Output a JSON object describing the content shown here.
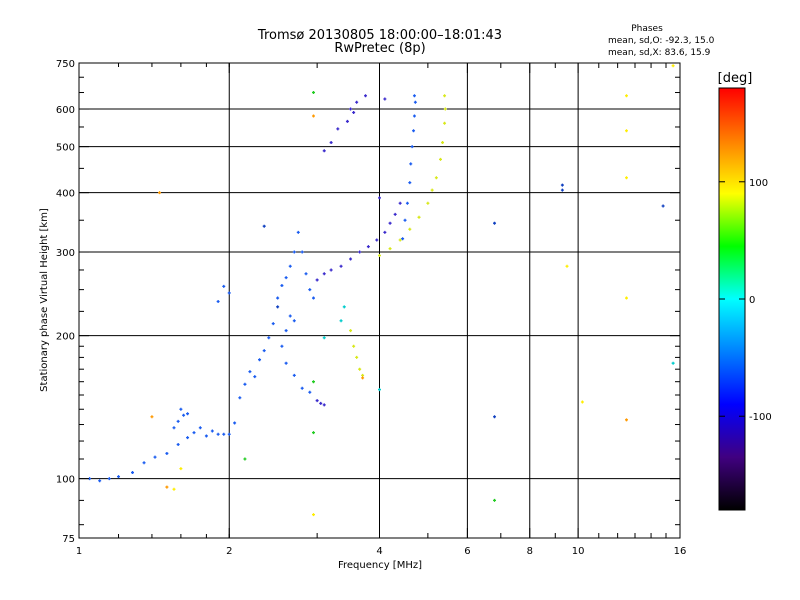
{
  "chart_data": {
    "type": "scatter",
    "title": "Tromsø 20130805 18:00:00–18:01:43",
    "subtitle": "RwPretec (8p)",
    "stats": {
      "heading": "Phases",
      "line_o": "mean, sd,O: -92.3, 15.0",
      "line_x": "mean, sd,X:  83.6, 15.9"
    },
    "xlabel": "Frequency [MHz]",
    "ylabel": "Stationary phase Virtual Height [km]",
    "x_scale": "log",
    "y_scale": "log",
    "xlim": [
      1,
      16
    ],
    "ylim": [
      75,
      750
    ],
    "x_ticks": [
      1,
      2,
      4,
      6,
      8,
      10,
      16
    ],
    "x_tick_labels": [
      "1",
      "2",
      "4",
      "6",
      "8",
      "10",
      "16"
    ],
    "y_ticks": [
      75,
      100,
      200,
      300,
      400,
      500,
      600,
      750
    ],
    "y_tick_labels": [
      "75",
      "100",
      "200",
      "300",
      "400",
      "500",
      "600",
      "750"
    ],
    "grid": true,
    "colorbar": {
      "label": "[deg]",
      "range": [
        -180,
        180
      ],
      "ticks": [
        100,
        0,
        -100
      ],
      "tick_labels": [
        "100",
        "0",
        "-100"
      ],
      "colors": [
        "#ff0000",
        "#ff8000",
        "#ffff00",
        "#00ff00",
        "#00ffff",
        "#0080ff",
        "#0000ff",
        "#400080",
        "#000000"
      ]
    },
    "series": [
      {
        "color": "#1a5cf0",
        "description_phase": -110,
        "points": [
          [
            1.05,
            100
          ],
          [
            1.1,
            99
          ],
          [
            1.15,
            100
          ],
          [
            1.2,
            101
          ],
          [
            1.28,
            103
          ],
          [
            1.35,
            108
          ],
          [
            1.42,
            111
          ],
          [
            1.5,
            113
          ],
          [
            1.58,
            118
          ],
          [
            1.65,
            122
          ],
          [
            1.7,
            125
          ],
          [
            1.75,
            128
          ],
          [
            1.8,
            123
          ],
          [
            1.85,
            126
          ],
          [
            1.9,
            124
          ],
          [
            1.95,
            124
          ],
          [
            2.0,
            124
          ],
          [
            2.05,
            131
          ],
          [
            2.1,
            148
          ],
          [
            2.15,
            158
          ],
          [
            2.2,
            168
          ],
          [
            2.25,
            164
          ],
          [
            2.3,
            178
          ],
          [
            2.35,
            186
          ],
          [
            2.4,
            198
          ],
          [
            2.45,
            212
          ],
          [
            2.5,
            240
          ],
          [
            2.55,
            255
          ],
          [
            2.6,
            265
          ],
          [
            2.65,
            280
          ],
          [
            2.7,
            300
          ],
          [
            2.75,
            330
          ],
          [
            2.8,
            300
          ],
          [
            2.85,
            270
          ],
          [
            2.9,
            250
          ],
          [
            2.95,
            240
          ],
          [
            2.65,
            220
          ],
          [
            2.7,
            215
          ],
          [
            2.6,
            205
          ],
          [
            2.55,
            190
          ],
          [
            2.6,
            175
          ],
          [
            2.7,
            165
          ],
          [
            2.8,
            155
          ],
          [
            2.9,
            152
          ],
          [
            1.6,
            140
          ],
          [
            1.62,
            136
          ],
          [
            1.58,
            132
          ],
          [
            1.55,
            128
          ],
          [
            1.65,
            137
          ],
          [
            1.95,
            254
          ],
          [
            2.0,
            246
          ],
          [
            1.9,
            236
          ],
          [
            4.45,
            320
          ],
          [
            4.5,
            350
          ],
          [
            4.55,
            380
          ],
          [
            4.6,
            420
          ],
          [
            4.62,
            460
          ],
          [
            4.65,
            500
          ],
          [
            4.68,
            540
          ],
          [
            4.7,
            580
          ],
          [
            4.72,
            620
          ],
          [
            4.7,
            640
          ]
        ]
      },
      {
        "color": "#3a2acc",
        "description_phase": -130,
        "points": [
          [
            3.0,
            146
          ],
          [
            3.05,
            144
          ],
          [
            3.1,
            143
          ],
          [
            3.0,
            262
          ],
          [
            3.1,
            270
          ],
          [
            3.2,
            275
          ],
          [
            3.35,
            280
          ],
          [
            3.5,
            290
          ],
          [
            3.65,
            300
          ],
          [
            3.8,
            308
          ],
          [
            3.95,
            318
          ],
          [
            4.1,
            330
          ],
          [
            4.2,
            345
          ],
          [
            4.3,
            360
          ],
          [
            4.4,
            380
          ],
          [
            3.1,
            490
          ],
          [
            3.2,
            510
          ],
          [
            3.3,
            545
          ],
          [
            3.45,
            565
          ],
          [
            3.55,
            590
          ],
          [
            3.6,
            620
          ],
          [
            3.75,
            640
          ],
          [
            4.1,
            630
          ],
          [
            4.0,
            390
          ],
          [
            3.5,
            600
          ]
        ]
      },
      {
        "color": "#d8e81a",
        "description_phase": 90,
        "points": [
          [
            3.5,
            205
          ],
          [
            3.55,
            190
          ],
          [
            3.6,
            180
          ],
          [
            3.65,
            170
          ],
          [
            3.7,
            165
          ],
          [
            4.0,
            295
          ],
          [
            4.2,
            305
          ],
          [
            4.4,
            318
          ],
          [
            4.6,
            335
          ],
          [
            4.8,
            355
          ],
          [
            5.0,
            380
          ],
          [
            5.1,
            405
          ],
          [
            5.2,
            430
          ],
          [
            5.3,
            470
          ],
          [
            5.35,
            510
          ],
          [
            5.4,
            560
          ],
          [
            5.42,
            600
          ],
          [
            5.4,
            640
          ]
        ]
      },
      {
        "color": "#ff9900",
        "description_phase": 120,
        "points": [
          [
            1.45,
            400
          ],
          [
            3.7,
            163
          ],
          [
            2.95,
            580
          ],
          [
            1.5,
            96
          ],
          [
            12.5,
            133
          ],
          [
            1.4,
            135
          ]
        ]
      },
      {
        "color": "#ffee00",
        "description_phase": 95,
        "points": [
          [
            1.55,
            95
          ],
          [
            1.6,
            105
          ],
          [
            2.95,
            84
          ],
          [
            10.2,
            145
          ],
          [
            9.5,
            280
          ],
          [
            12.5,
            240
          ],
          [
            12.5,
            430
          ],
          [
            12.5,
            540
          ],
          [
            12.5,
            640
          ],
          [
            15.5,
            740
          ]
        ]
      },
      {
        "color": "#22cc22",
        "description_phase": 20,
        "points": [
          [
            2.95,
            650
          ],
          [
            2.95,
            125
          ],
          [
            2.15,
            110
          ],
          [
            2.95,
            160
          ],
          [
            6.8,
            90
          ]
        ]
      },
      {
        "color": "#00cccc",
        "description_phase": -20,
        "points": [
          [
            3.4,
            230
          ],
          [
            3.35,
            215
          ],
          [
            3.1,
            198
          ],
          [
            15.5,
            175
          ],
          [
            4.0,
            154
          ]
        ]
      },
      {
        "color": "#1040c0",
        "description_phase": -115,
        "points": [
          [
            9.3,
            415
          ],
          [
            9.3,
            405
          ],
          [
            14.8,
            375
          ],
          [
            6.8,
            345
          ],
          [
            2.35,
            340
          ],
          [
            2.5,
            230
          ],
          [
            6.8,
            135
          ]
        ]
      }
    ]
  }
}
